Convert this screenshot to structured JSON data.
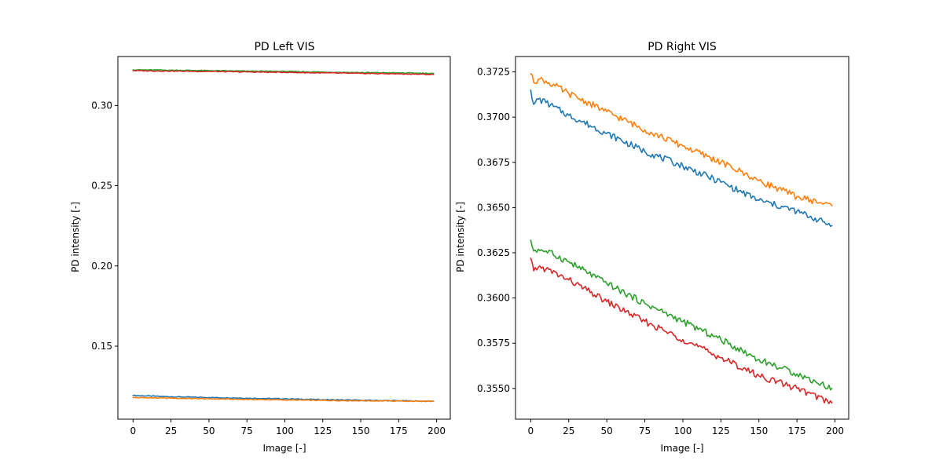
{
  "chart_data": [
    {
      "type": "line",
      "title": "PD Left VIS",
      "xlabel": "Image [-]",
      "ylabel": "PD intensity [-]",
      "xlim": [
        -10,
        209
      ],
      "ylim": [
        0.1045,
        0.3305
      ],
      "xticks": [
        0,
        25,
        50,
        75,
        100,
        125,
        150,
        175,
        200
      ],
      "xtick_labels": [
        "0",
        "25",
        "50",
        "75",
        "100",
        "125",
        "150",
        "175",
        "200"
      ],
      "yticks": [
        0.15,
        0.2,
        0.25,
        0.3
      ],
      "ytick_labels": [
        "0.15",
        "0.20",
        "0.25",
        "0.30"
      ],
      "grid": false,
      "legend": "none",
      "series": [
        {
          "color": "#1f77b4",
          "x": [
            0,
            25,
            50,
            75,
            100,
            125,
            150,
            175,
            198
          ],
          "values": [
            0.1193,
            0.1185,
            0.118,
            0.1176,
            0.1172,
            0.1167,
            0.1163,
            0.116,
            0.1156
          ]
        },
        {
          "color": "#ff7f0e",
          "x": [
            0,
            25,
            50,
            75,
            100,
            125,
            150,
            175,
            198
          ],
          "values": [
            0.118,
            0.1176,
            0.1172,
            0.1168,
            0.1165,
            0.1162,
            0.116,
            0.1158,
            0.1156
          ]
        },
        {
          "color": "#2ca02c",
          "x": [
            0,
            25,
            50,
            75,
            100,
            125,
            150,
            175,
            198
          ],
          "values": [
            0.3222,
            0.322,
            0.3217,
            0.3214,
            0.3212,
            0.3208,
            0.3205,
            0.3203,
            0.32
          ]
        },
        {
          "color": "#d62728",
          "x": [
            0,
            25,
            50,
            75,
            100,
            125,
            150,
            175,
            198
          ],
          "values": [
            0.3217,
            0.3214,
            0.3212,
            0.3209,
            0.3206,
            0.3203,
            0.32,
            0.3197,
            0.3193
          ]
        }
      ]
    },
    {
      "type": "line",
      "title": "PD Right VIS",
      "xlabel": "Image [-]",
      "ylabel": "PD intensity [-]",
      "xlim": [
        -10,
        209
      ],
      "ylim": [
        0.3533,
        0.37335
      ],
      "xticks": [
        0,
        25,
        50,
        75,
        100,
        125,
        150,
        175,
        200
      ],
      "xtick_labels": [
        "0",
        "25",
        "50",
        "75",
        "100",
        "125",
        "150",
        "175",
        "200"
      ],
      "yticks": [
        0.355,
        0.3575,
        0.36,
        0.3625,
        0.365,
        0.3675,
        0.37,
        0.3725
      ],
      "ytick_labels": [
        "0.3550",
        "0.3575",
        "0.3600",
        "0.3625",
        "0.3650",
        "0.3675",
        "0.3700",
        "0.3725"
      ],
      "grid": false,
      "legend": "none",
      "series": [
        {
          "color": "#1f77b4",
          "x": [
            0,
            2,
            5,
            10,
            25,
            50,
            75,
            100,
            125,
            150,
            175,
            198
          ],
          "values": [
            0.3715,
            0.3707,
            0.371,
            0.3708,
            0.3701,
            0.3691,
            0.3681,
            0.3673,
            0.3664,
            0.3654,
            0.3648,
            0.364
          ]
        },
        {
          "color": "#ff7f0e",
          "x": [
            0,
            2,
            5,
            10,
            25,
            50,
            75,
            100,
            125,
            150,
            175,
            198
          ],
          "values": [
            0.3724,
            0.3719,
            0.3721,
            0.372,
            0.3713,
            0.3703,
            0.3693,
            0.3684,
            0.3675,
            0.3665,
            0.3656,
            0.3651
          ]
        },
        {
          "color": "#2ca02c",
          "x": [
            0,
            2,
            5,
            10,
            25,
            50,
            75,
            100,
            125,
            150,
            175,
            198
          ],
          "values": [
            0.3632,
            0.3626,
            0.3627,
            0.3626,
            0.362,
            0.3608,
            0.3597,
            0.3587,
            0.3577,
            0.3566,
            0.3558,
            0.355
          ]
        },
        {
          "color": "#d62728",
          "x": [
            0,
            2,
            5,
            10,
            25,
            50,
            75,
            100,
            125,
            150,
            175,
            198
          ],
          "values": [
            0.3622,
            0.3615,
            0.3617,
            0.3616,
            0.361,
            0.3598,
            0.3587,
            0.3577,
            0.3567,
            0.3557,
            0.355,
            0.3542
          ]
        }
      ]
    }
  ]
}
